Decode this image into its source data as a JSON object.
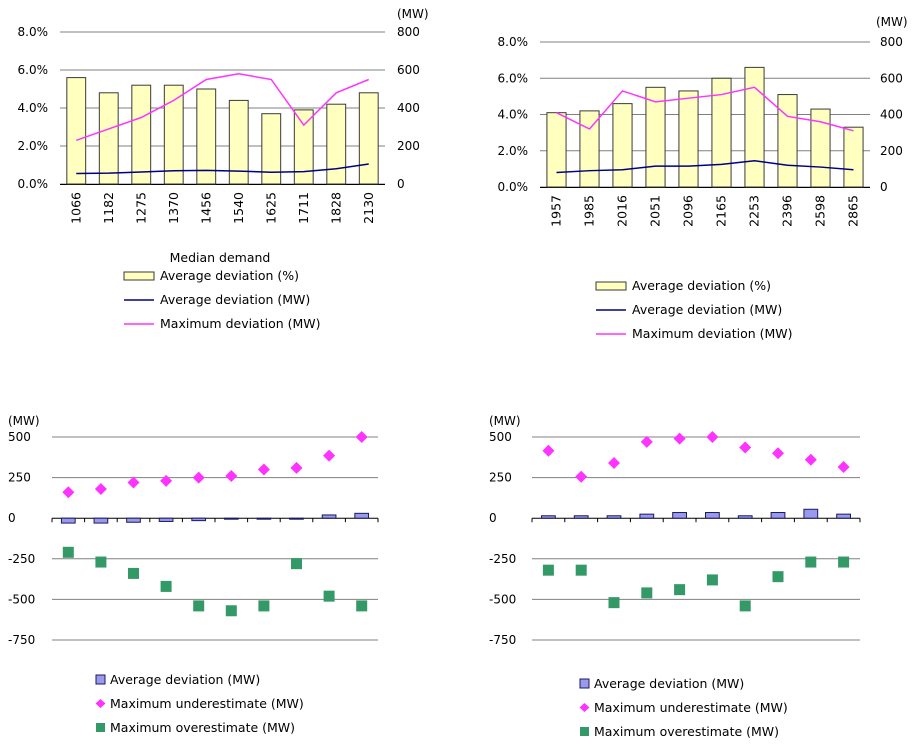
{
  "colors": {
    "bar_fill": "#ffffc0",
    "bar_stroke": "#3a3a3a",
    "avg_line": "#000080",
    "max_line": "#ff33ff",
    "grid": "#808080",
    "col_fill": "#9999ee",
    "col_stroke": "#1a1a60",
    "diamond": "#ff33ff",
    "square": "#339966"
  },
  "chart_data": [
    {
      "id": "top-left",
      "type": "bar",
      "categories": [
        "1066",
        "1182",
        "1275",
        "1370",
        "1456",
        "1540",
        "1625",
        "1711",
        "1828",
        "2130"
      ],
      "xlabel": "Median demand",
      "left_axis": {
        "ylim": [
          0,
          8
        ],
        "ticks": [
          "0.0%",
          "2.0%",
          "4.0%",
          "6.0%",
          "8.0%"
        ]
      },
      "right_axis": {
        "ylim": [
          0,
          800
        ],
        "ticks": [
          "0",
          "200",
          "400",
          "600",
          "800"
        ],
        "unit": "(MW)"
      },
      "grid": true,
      "legend_position": "bottom",
      "series": [
        {
          "name": "Average deviation (%)",
          "type": "bar",
          "axis": "left",
          "values": [
            5.6,
            4.8,
            5.2,
            5.2,
            5.0,
            4.4,
            3.7,
            3.9,
            4.2,
            4.8
          ]
        },
        {
          "name": "Average deviation (MW)",
          "type": "line",
          "axis": "right",
          "values": [
            55,
            57,
            63,
            70,
            72,
            68,
            62,
            65,
            80,
            105
          ]
        },
        {
          "name": "Maximum deviation (MW)",
          "type": "line",
          "axis": "right",
          "values": [
            230,
            290,
            350,
            440,
            550,
            580,
            550,
            310,
            480,
            550
          ]
        }
      ]
    },
    {
      "id": "top-right",
      "type": "bar",
      "categories": [
        "1957",
        "1985",
        "2016",
        "2051",
        "2096",
        "2165",
        "2253",
        "2396",
        "2598",
        "2865"
      ],
      "left_axis": {
        "ylim": [
          0,
          8
        ],
        "ticks": [
          "0.0%",
          "2.0%",
          "4.0%",
          "6.0%",
          "8.0%"
        ]
      },
      "right_axis": {
        "ylim": [
          0,
          800
        ],
        "ticks": [
          "0",
          "200",
          "400",
          "600",
          "800"
        ],
        "unit": "(MW)"
      },
      "grid": true,
      "legend_position": "bottom",
      "series": [
        {
          "name": "Average deviation (%)",
          "type": "bar",
          "axis": "left",
          "values": [
            4.1,
            4.2,
            4.6,
            5.5,
            5.3,
            6.0,
            6.6,
            5.1,
            4.3,
            3.3
          ]
        },
        {
          "name": "Average deviation (MW)",
          "type": "line",
          "axis": "right",
          "values": [
            80,
            90,
            95,
            115,
            115,
            125,
            145,
            120,
            110,
            95
          ]
        },
        {
          "name": "Maximum deviation (MW)",
          "type": "line",
          "axis": "right",
          "values": [
            410,
            320,
            530,
            470,
            490,
            510,
            550,
            390,
            360,
            310
          ]
        }
      ]
    },
    {
      "id": "bottom-left",
      "type": "bar",
      "ylim": [
        -750,
        500
      ],
      "yticks": [
        "500",
        "250",
        "0",
        "-250",
        "-500",
        "-750"
      ],
      "yunit": "(MW)",
      "n_categories": 10,
      "grid": true,
      "legend_position": "bottom",
      "series": [
        {
          "name": "Average deviation (MW)",
          "type": "bar",
          "values": [
            -30,
            -30,
            -25,
            -20,
            -15,
            -5,
            -5,
            0,
            20,
            30
          ]
        },
        {
          "name": "Maximum underestimate (MW)",
          "type": "scatter",
          "marker": "diamond",
          "values": [
            160,
            180,
            220,
            230,
            250,
            260,
            300,
            310,
            385,
            500
          ]
        },
        {
          "name": "Maximum overestimate (MW)",
          "type": "scatter",
          "marker": "square",
          "values": [
            -210,
            -270,
            -340,
            -420,
            -540,
            -570,
            -540,
            -280,
            -480,
            -540
          ]
        }
      ]
    },
    {
      "id": "bottom-right",
      "type": "bar",
      "ylim": [
        -750,
        500
      ],
      "yticks": [
        "500",
        "250",
        "0",
        "-250",
        "-500",
        "-750"
      ],
      "yunit": "(MW)",
      "n_categories": 10,
      "grid": true,
      "legend_position": "bottom",
      "series": [
        {
          "name": "Average deviation (MW)",
          "type": "bar",
          "values": [
            15,
            15,
            15,
            25,
            35,
            35,
            15,
            35,
            55,
            25
          ]
        },
        {
          "name": "Maximum underestimate (MW)",
          "type": "scatter",
          "marker": "diamond",
          "values": [
            415,
            255,
            340,
            470,
            490,
            500,
            435,
            400,
            360,
            315
          ]
        },
        {
          "name": "Maximum overestimate (MW)",
          "type": "scatter",
          "marker": "square",
          "values": [
            -320,
            -320,
            -520,
            -460,
            -440,
            -380,
            -540,
            -360,
            -270,
            -270
          ]
        }
      ]
    }
  ]
}
